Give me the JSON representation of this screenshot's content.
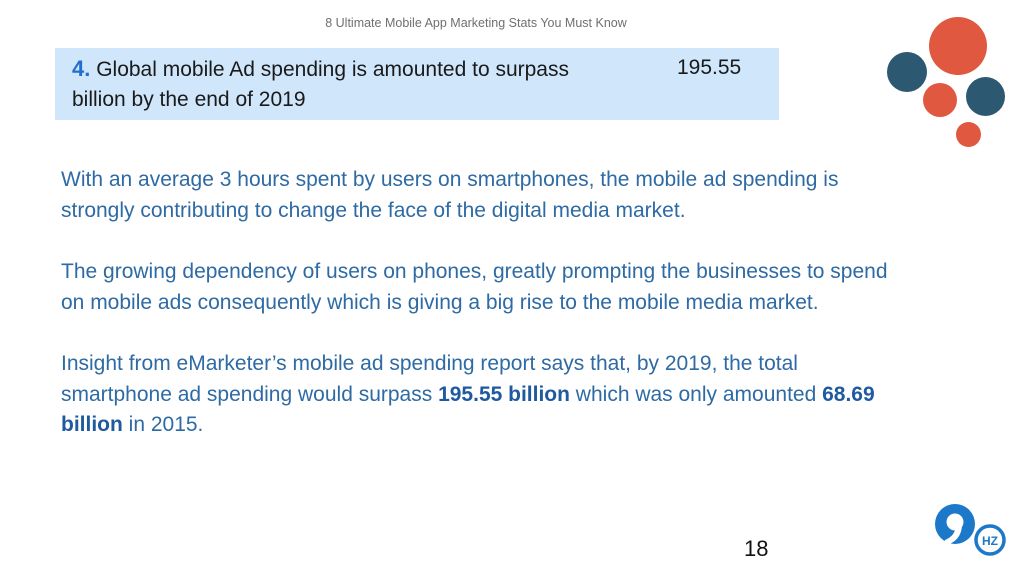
{
  "header": {
    "title": "8 Ultimate Mobile App Marketing Stats You Must Know"
  },
  "stat": {
    "number": "4.",
    "line1": "Global mobile Ad spending is amounted to surpass",
    "amount": "195.55",
    "line2": "billion by the end of 2019"
  },
  "paragraphs": {
    "p1": "With an average 3 hours spent by users on smartphones, the mobile ad spending is strongly contributing to change the face of the digital media market.",
    "p2": "The growing dependency of users on phones, greatly prompting the businesses to spend on mobile ads consequently which is giving a big rise to the mobile media market.",
    "p3_part1": "Insight from eMarketer’s mobile ad spending report says that, by 2019, the total smartphone ad spending would surpass ",
    "p3_bold1": "195.55 billion",
    "p3_part2": " which was only amounted ",
    "p3_bold2": "68.69 billion",
    "p3_part3": " in 2015."
  },
  "page_number": "18",
  "logo": {
    "text": "HZ",
    "icon": "9hz-logo-icon"
  },
  "colors": {
    "accent_blue": "#1f6fd1",
    "body_text": "#2e6aa3",
    "box_bg": "#cfe6fb",
    "orange": "#e0583f",
    "teal": "#2c5871"
  }
}
